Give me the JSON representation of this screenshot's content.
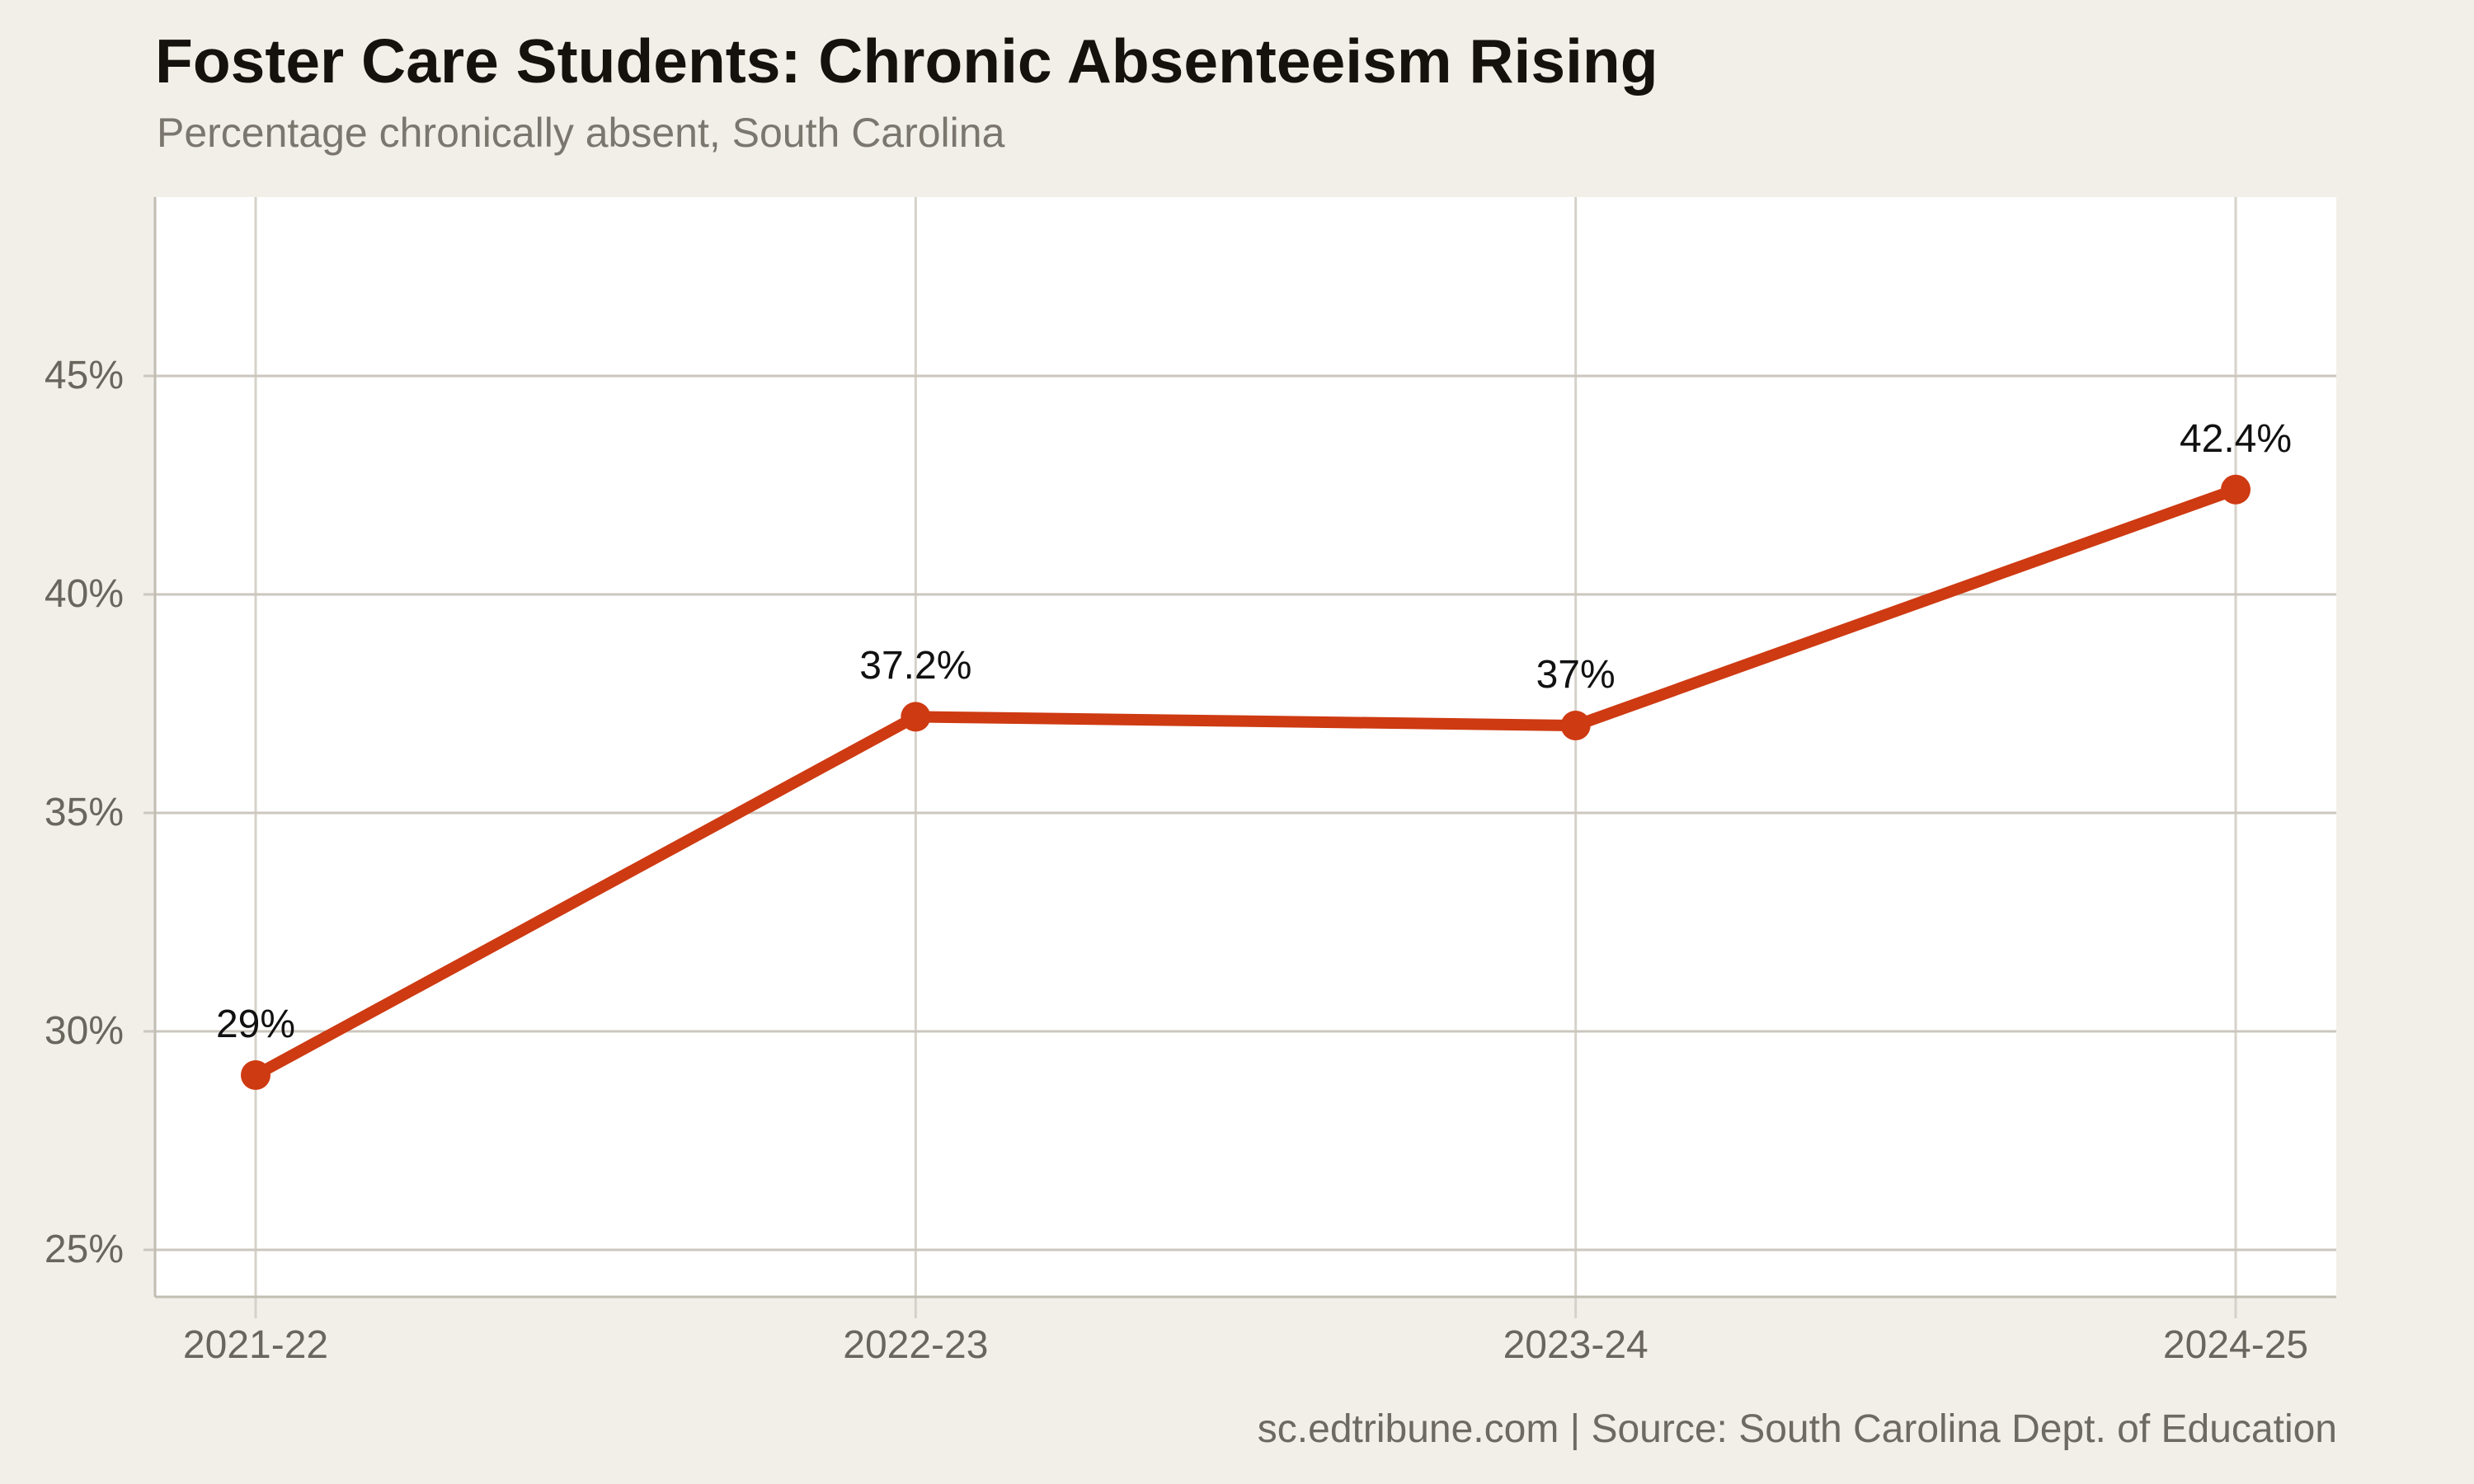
{
  "page": {
    "title": "Foster Care Students: Chronic Absenteeism Rising",
    "subtitle": "Percentage chronically absent, South Carolina",
    "footer": "sc.edtribune.com | Source: South Carolina Dept. of Education"
  },
  "colors": {
    "background": "#f2efe9",
    "plot_background": "#ffffff",
    "grid_horizontal": "#ccc7be",
    "grid_vertical": "#d6d2c9",
    "axis": "#c2bdb3",
    "line": "#ce3a12",
    "title_text": "#15120e",
    "subtitle_text": "#7b776f",
    "tick_text": "#6a665e",
    "point_label_text": "#111111",
    "footer_text": "#6d6963"
  },
  "chart_data": {
    "type": "line",
    "title": "Foster Care Students: Chronic Absenteeism Rising",
    "subtitle": "Percentage chronically absent, South Carolina",
    "source": "sc.edtribune.com | Source: South Carolina Dept. of Education",
    "categories": [
      "2021-22",
      "2022-23",
      "2023-24",
      "2024-25"
    ],
    "series": [
      {
        "name": "Percentage chronically absent",
        "values": [
          29,
          37.2,
          37,
          42.4
        ]
      }
    ],
    "point_labels": [
      "29%",
      "37.2%",
      "37%",
      "42.4%"
    ],
    "yticks": [
      25,
      30,
      35,
      40,
      45
    ],
    "ytick_labels": [
      "25%",
      "30%",
      "35%",
      "40%",
      "45%"
    ],
    "ylim": [
      23.9,
      49.1
    ],
    "grid": true,
    "legend": false,
    "marker": "circle"
  }
}
